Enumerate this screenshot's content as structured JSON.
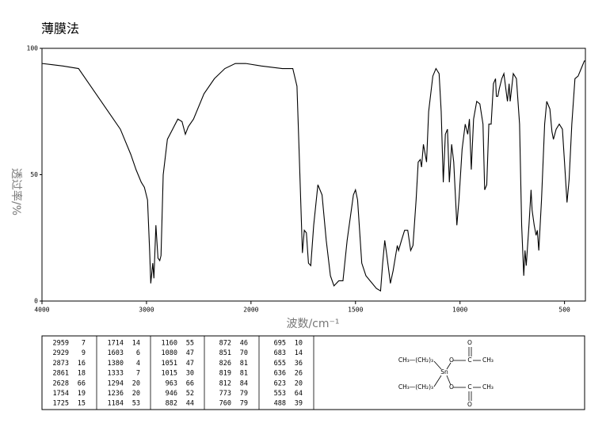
{
  "chart_data": {
    "type": "line",
    "title": "薄膜法",
    "xlabel": "波数/cm⁻¹",
    "ylabel": "透过率/%",
    "xlim": [
      4000,
      400
    ],
    "xticks": [
      4000,
      3000,
      2000,
      1500,
      1000,
      500
    ],
    "ylim": [
      0,
      100
    ],
    "yticks": [
      0,
      50,
      100
    ],
    "color": "#000000",
    "grid": false,
    "x": [
      4000,
      3900,
      3800,
      3650,
      3550,
      3450,
      3350,
      3250,
      3150,
      3100,
      3050,
      3020,
      2990,
      2970,
      2959,
      2940,
      2929,
      2910,
      2890,
      2873,
      2861,
      2840,
      2800,
      2750,
      2700,
      2660,
      2628,
      2600,
      2550,
      2450,
      2350,
      2250,
      2150,
      2050,
      1950,
      1850,
      1800,
      1780,
      1770,
      1754,
      1745,
      1735,
      1725,
      1714,
      1700,
      1680,
      1660,
      1640,
      1620,
      1603,
      1580,
      1560,
      1540,
      1510,
      1500,
      1490,
      1470,
      1450,
      1430,
      1400,
      1380,
      1370,
      1360,
      1350,
      1333,
      1320,
      1300,
      1294,
      1280,
      1265,
      1250,
      1236,
      1225,
      1210,
      1200,
      1190,
      1184,
      1175,
      1160,
      1150,
      1130,
      1115,
      1100,
      1090,
      1080,
      1070,
      1060,
      1051,
      1040,
      1030,
      1015,
      1005,
      990,
      975,
      963,
      955,
      946,
      935,
      920,
      905,
      890,
      882,
      872,
      862,
      851,
      840,
      830,
      826,
      819,
      812,
      800,
      790,
      773,
      765,
      760,
      745,
      730,
      715,
      705,
      695,
      689,
      683,
      670,
      660,
      655,
      645,
      636,
      630,
      623,
      610,
      595,
      585,
      570,
      560,
      553,
      540,
      525,
      510,
      500,
      488,
      478,
      465,
      450,
      435,
      420,
      405,
      400
    ],
    "values": [
      94,
      93.5,
      93,
      92,
      86,
      80,
      74,
      68,
      58,
      52,
      47,
      45,
      40,
      20,
      7,
      15,
      9,
      30,
      17,
      16,
      18,
      50,
      64,
      68,
      72,
      71,
      66,
      69,
      72,
      82,
      88,
      92,
      94,
      94,
      93,
      92,
      92,
      85,
      60,
      19,
      28,
      27,
      15,
      14,
      30,
      46,
      42,
      24,
      10,
      6,
      8,
      8,
      24,
      42,
      44,
      40,
      15,
      10,
      8,
      5,
      4,
      15,
      24,
      18,
      7,
      12,
      22,
      20,
      24,
      28,
      28,
      20,
      22,
      40,
      55,
      56,
      53,
      62,
      55,
      75,
      89,
      92,
      90,
      75,
      47,
      66,
      68,
      47,
      62,
      55,
      30,
      40,
      60,
      70,
      66,
      72,
      52,
      72,
      79,
      78,
      70,
      44,
      46,
      70,
      70,
      86,
      88,
      81,
      81,
      84,
      88,
      90,
      79,
      86,
      79,
      90,
      88,
      70,
      30,
      10,
      20,
      14,
      30,
      44,
      36,
      30,
      26,
      28,
      20,
      40,
      70,
      79,
      76,
      67,
      64,
      68,
      70,
      68,
      55,
      39,
      48,
      70,
      88,
      89,
      92,
      95,
      95
    ]
  },
  "peak_table": {
    "columns": [
      [
        [
          2959,
          7
        ],
        [
          2929,
          9
        ],
        [
          2873,
          16
        ],
        [
          2861,
          18
        ],
        [
          2628,
          66
        ],
        [
          1754,
          19
        ],
        [
          1725,
          15
        ]
      ],
      [
        [
          1714,
          14
        ],
        [
          1603,
          6
        ],
        [
          1380,
          4
        ],
        [
          1333,
          7
        ],
        [
          1294,
          20
        ],
        [
          1236,
          20
        ],
        [
          1184,
          53
        ]
      ],
      [
        [
          1160,
          55
        ],
        [
          1080,
          47
        ],
        [
          1051,
          47
        ],
        [
          1015,
          30
        ],
        [
          963,
          66
        ],
        [
          946,
          52
        ],
        [
          882,
          44
        ]
      ],
      [
        [
          872,
          46
        ],
        [
          851,
          70
        ],
        [
          826,
          81
        ],
        [
          819,
          81
        ],
        [
          812,
          84
        ],
        [
          773,
          79
        ],
        [
          760,
          79
        ]
      ],
      [
        [
          695,
          10
        ],
        [
          683,
          14
        ],
        [
          655,
          36
        ],
        [
          636,
          26
        ],
        [
          623,
          20
        ],
        [
          553,
          64
        ],
        [
          488,
          39
        ]
      ]
    ]
  },
  "structure": {
    "texts": [
      "CH₃—(CH₂)₃",
      "Sn",
      "O",
      "C",
      "O",
      "CH₃",
      "CH₃—(CH₂)₃",
      "O",
      "C",
      "O",
      "CH₃"
    ]
  }
}
